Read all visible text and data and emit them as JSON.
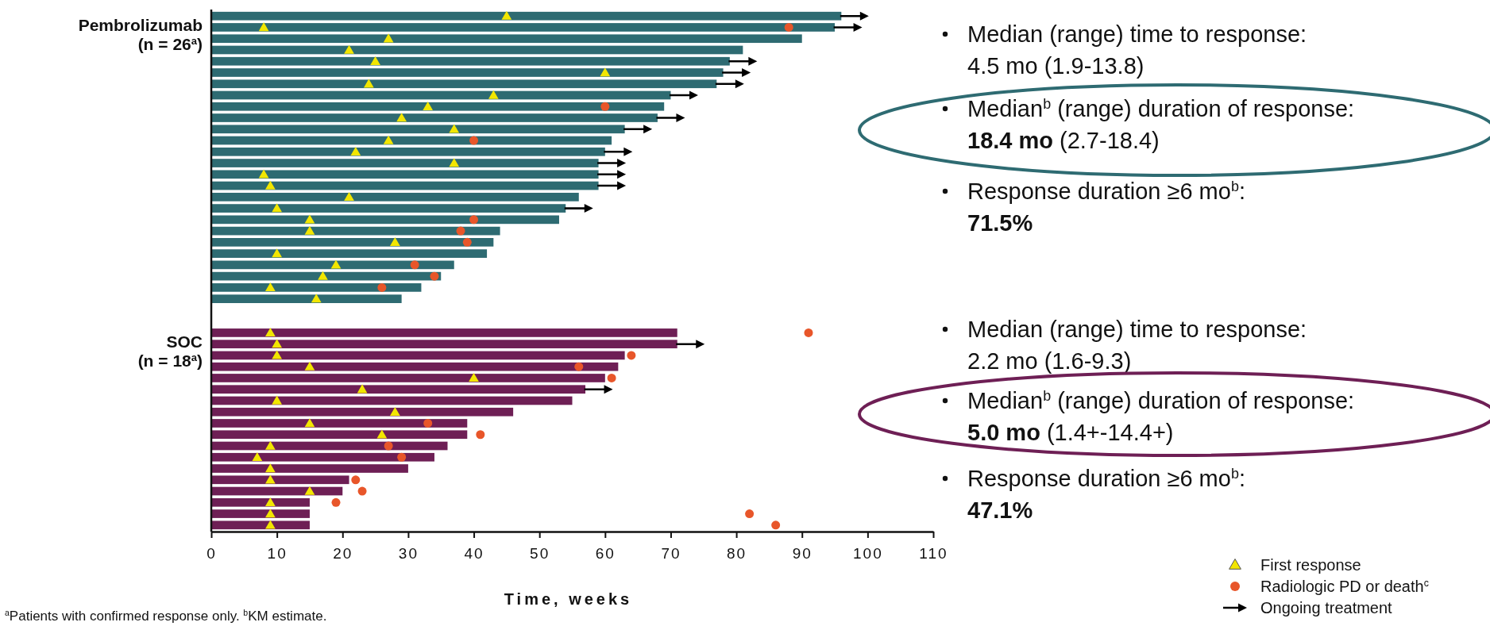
{
  "chart_data": {
    "type": "bar",
    "orientation": "horizontal",
    "xlabel": "Time, weeks",
    "xlim": [
      0,
      110
    ],
    "xticks": [
      0,
      10,
      20,
      30,
      40,
      50,
      60,
      70,
      80,
      90,
      100,
      110
    ],
    "tick_labels": "x",
    "legend": "bottom right",
    "categories": [
      null,
      null,
      null,
      null,
      null,
      null,
      null,
      null,
      null,
      null,
      null,
      null,
      null,
      null,
      null,
      null,
      null,
      null,
      null,
      null,
      null,
      null,
      null,
      null,
      null,
      null,
      null,
      null,
      null,
      null,
      null,
      null,
      null,
      null,
      null,
      null,
      null,
      null,
      null,
      null,
      null,
      null,
      null,
      null,
      null,
      null
    ],
    "series": [
      {
        "name": "Pembrolizumab\n(n = 26$^{a}$)",
        "color": "#2e6b72",
        "values": [
          96,
          95,
          90,
          81,
          79,
          78,
          77,
          70,
          69,
          68,
          63,
          61,
          60,
          59,
          59,
          59,
          56,
          54,
          53,
          44,
          43,
          42,
          37,
          35,
          32,
          29,
          null,
          null,
          null,
          null,
          null,
          null,
          null,
          null,
          null,
          null,
          null,
          null,
          null,
          null,
          null,
          null,
          null,
          null,
          null,
          null
        ]
      },
      {
        "name": "SOC\n(n = 18$^{a}$)",
        "color": "#6e1f55",
        "values": [
          null,
          null,
          null,
          null,
          null,
          null,
          null,
          null,
          null,
          null,
          null,
          null,
          null,
          null,
          null,
          null,
          null,
          null,
          null,
          null,
          null,
          null,
          null,
          null,
          null,
          null,
          null,
          null,
          71,
          71,
          63,
          62,
          60,
          57,
          55,
          46,
          39,
          39,
          36,
          34,
          30,
          21,
          20,
          15,
          15,
          15
        ]
      },
      {
        "name": "First response",
        "type": "scatter",
        "marker": "triangle",
        "color": "#f2e600",
        "values": [
          45,
          8,
          27,
          21,
          25,
          60,
          24,
          43,
          33,
          29,
          37,
          27,
          22,
          37,
          8,
          9,
          21,
          10,
          15,
          15,
          28,
          10,
          19,
          17,
          9,
          16,
          null,
          null,
          9,
          10,
          10,
          15,
          40,
          23,
          10,
          28,
          15,
          26,
          9,
          7,
          9,
          9,
          15,
          9,
          9,
          9
        ]
      },
      {
        "name": "Radiologic PD or death$^{c}$",
        "type": "scatter",
        "marker": "circle",
        "color": "#e8562a",
        "values": [
          null,
          88,
          null,
          null,
          null,
          null,
          null,
          null,
          60,
          null,
          null,
          40,
          null,
          null,
          null,
          null,
          null,
          null,
          40,
          38,
          39,
          null,
          31,
          34,
          26,
          null,
          null,
          null,
          91,
          null,
          64,
          56,
          61,
          null,
          null,
          null,
          33,
          41,
          27,
          29,
          null,
          22,
          23,
          19,
          82,
          86
        ]
      },
      {
        "name": "Ongoing treatment",
        "type": "scatter",
        "color": "#000000",
        "values": [
          98,
          97,
          null,
          null,
          81,
          80,
          79,
          72,
          null,
          70,
          65,
          null,
          62,
          61,
          61,
          61,
          null,
          56,
          null,
          null,
          null,
          null,
          null,
          null,
          null,
          null,
          null,
          null,
          null,
          73,
          null,
          null,
          null,
          59,
          null,
          null,
          null,
          null,
          null,
          null,
          null,
          null,
          null,
          null,
          null,
          null
        ]
      }
    ],
    "annotations": [
      "Median (range) time to response:",
      "4.5 mo (1.9-13.8)",
      "Median$^{b}$ (range) duration of response:",
      "18.4 mo",
      "(2.7-18.4)",
      "Response duration ≥6 mo$^{b}$:",
      "71.5%",
      "Median (range) time to response:",
      "2.2 mo (1.6-9.3)",
      "Median$^{b}$ (range) duration of response:",
      "5.0 mo",
      "(1.4+-14.4+)",
      "Response duration ≥6 mo$^{b}$:",
      "47.1%",
      "$^{a}$Patients with confirmed response only. $^{b}$KM estimate."
    ]
  }
}
